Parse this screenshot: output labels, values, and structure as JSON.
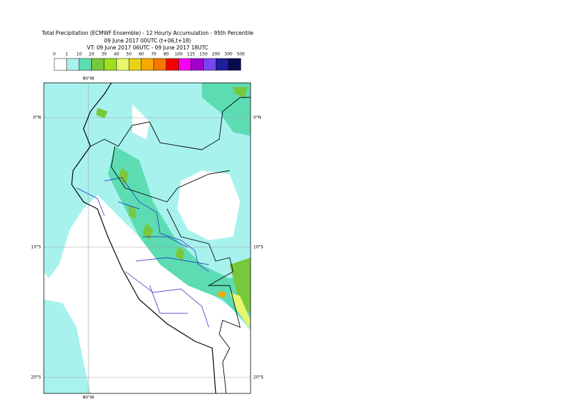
{
  "header": {
    "title": "Total Precipitation (ECMWF Ensemble) - 12 Hourly Accumulation - 95th Percentile",
    "run": "09 June 2017 00UTC (t+06,t+18)",
    "valid": "VT: 09 June 2017 06UTC - 09 June 2017 18UTC"
  },
  "legend": {
    "labels": [
      "0",
      "1",
      "10",
      "20",
      "30",
      "40",
      "50",
      "60",
      "70",
      "80",
      "100",
      "125",
      "150",
      "200",
      "300",
      "500"
    ],
    "colors": [
      "#ffffff",
      "#a8f2ee",
      "#5ddcb4",
      "#78c83c",
      "#9ee01c",
      "#e8f66e",
      "#e6d219",
      "#f5aa00",
      "#f57800",
      "#f50000",
      "#f500f5",
      "#a000c8",
      "#7846f0",
      "#1e1ea0",
      "#0a0a50"
    ]
  },
  "map": {
    "lon_label": "80°W",
    "lat_labels": [
      "0°N",
      "10°S",
      "20°S"
    ]
  }
}
